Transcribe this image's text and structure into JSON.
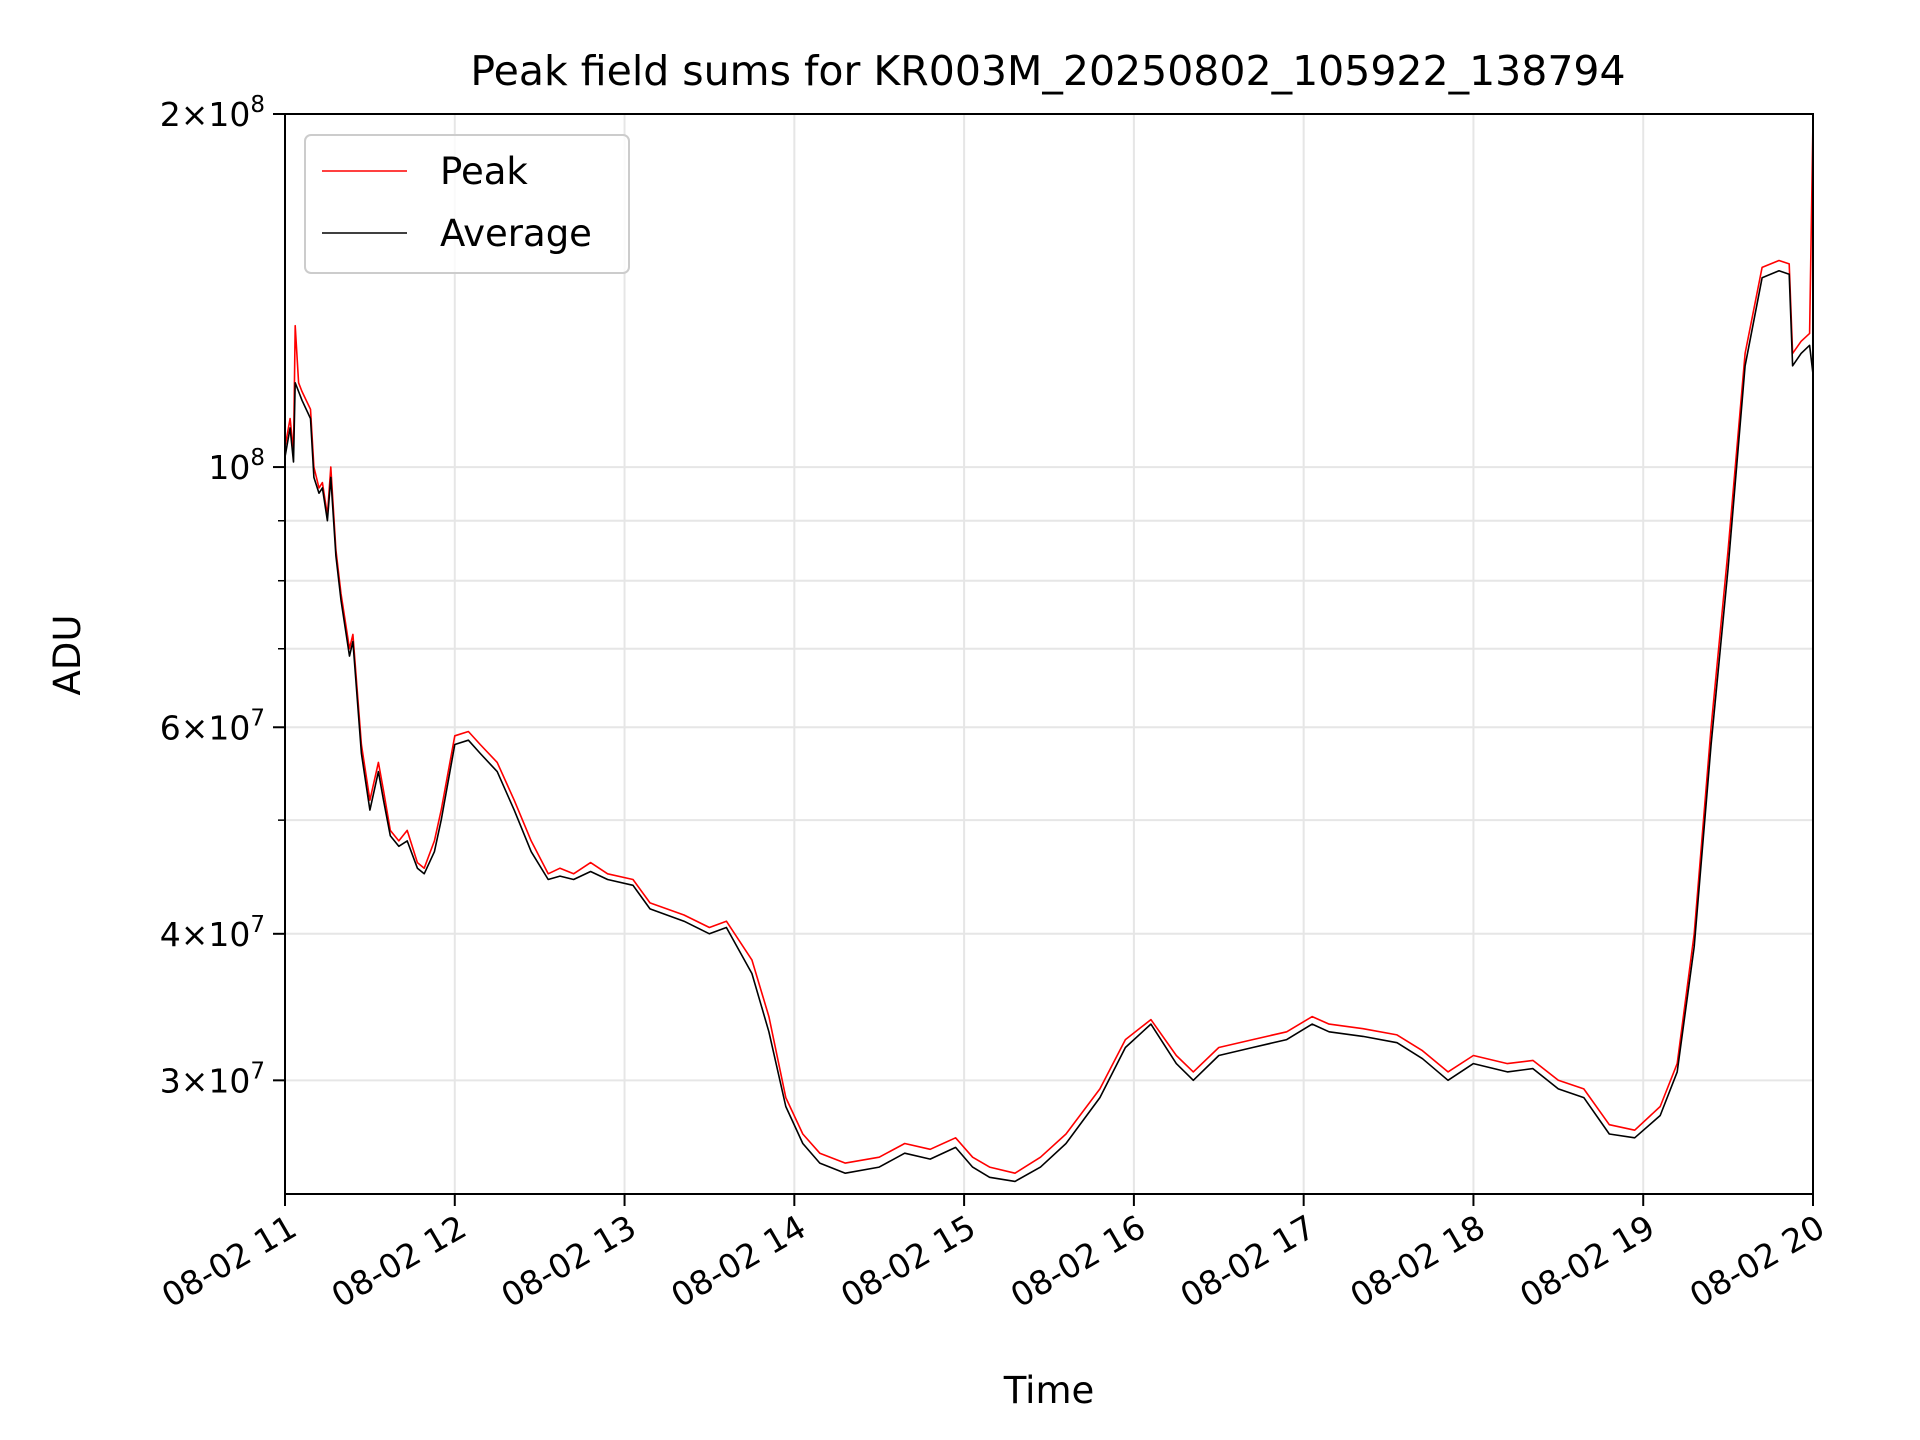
{
  "chart_data": {
    "type": "line",
    "title": "Peak field sums for KR003M_20250802_105922_138794",
    "xlabel": "Time",
    "ylabel": "ADU",
    "x_unit": "hours",
    "xlim": [
      "08-02 11",
      "08-02 20"
    ],
    "ylim": [
      24000000,
      200000000
    ],
    "yscale": "log",
    "grid": true,
    "legend_position": "upper-left",
    "x_ticks": [
      "08-02 11",
      "08-02 12",
      "08-02 13",
      "08-02 14",
      "08-02 15",
      "08-02 16",
      "08-02 17",
      "08-02 18",
      "08-02 19",
      "08-02 20"
    ],
    "y_ticks": [
      {
        "value": 30000000,
        "mantissa": "3",
        "base": "10",
        "exp": "7"
      },
      {
        "value": 40000000,
        "mantissa": "4",
        "base": "10",
        "exp": "7"
      },
      {
        "value": 60000000,
        "mantissa": "6",
        "base": "10",
        "exp": "7"
      },
      {
        "value": 100000000,
        "mantissa": "",
        "base": "10",
        "exp": "8"
      },
      {
        "value": 200000000,
        "mantissa": "2",
        "base": "10",
        "exp": "8"
      }
    ],
    "y_minor_ticks": [
      50000000,
      70000000,
      80000000,
      90000000
    ],
    "series": [
      {
        "name": "Peak",
        "color": "#ff0000",
        "x": [
          11.0,
          11.03,
          11.05,
          11.06,
          11.08,
          11.1,
          11.15,
          11.17,
          11.2,
          11.22,
          11.25,
          11.27,
          11.3,
          11.33,
          11.38,
          11.4,
          11.45,
          11.5,
          11.55,
          11.58,
          11.62,
          11.67,
          11.72,
          11.78,
          11.82,
          11.88,
          11.92,
          12.0,
          12.08,
          12.15,
          12.25,
          12.35,
          12.45,
          12.55,
          12.62,
          12.7,
          12.8,
          12.9,
          13.05,
          13.15,
          13.35,
          13.5,
          13.6,
          13.75,
          13.85,
          13.95,
          14.05,
          14.15,
          14.3,
          14.5,
          14.65,
          14.8,
          14.95,
          15.05,
          15.15,
          15.3,
          15.45,
          15.6,
          15.8,
          15.95,
          16.1,
          16.25,
          16.35,
          16.5,
          16.7,
          16.9,
          17.05,
          17.15,
          17.35,
          17.55,
          17.7,
          17.85,
          18.0,
          18.2,
          18.35,
          18.5,
          18.65,
          18.8,
          18.95,
          19.1,
          19.2,
          19.3,
          19.4,
          19.5,
          19.6,
          19.7,
          19.8,
          19.86,
          19.88,
          19.93,
          19.98,
          20.0
        ],
        "values": [
          104000000,
          110000000,
          103000000,
          132000000,
          118000000,
          116000000,
          112000000,
          100000000,
          96000000,
          97000000,
          91000000,
          100000000,
          85000000,
          78000000,
          70000000,
          72000000,
          58000000,
          52000000,
          56000000,
          53000000,
          49000000,
          48000000,
          49000000,
          46000000,
          45500000,
          48000000,
          51000000,
          59000000,
          59500000,
          58000000,
          56000000,
          52000000,
          48000000,
          45000000,
          45500000,
          45000000,
          46000000,
          45000000,
          44500000,
          42500000,
          41500000,
          40500000,
          41000000,
          38000000,
          34000000,
          29000000,
          27000000,
          26000000,
          25500000,
          25800000,
          26500000,
          26200000,
          26800000,
          25800000,
          25300000,
          25000000,
          25800000,
          27000000,
          29500000,
          32500000,
          33800000,
          31500000,
          30500000,
          32000000,
          32500000,
          33000000,
          34000000,
          33500000,
          33200000,
          32800000,
          31800000,
          30500000,
          31500000,
          31000000,
          31200000,
          30000000,
          29500000,
          27500000,
          27200000,
          28500000,
          31000000,
          40000000,
          60000000,
          85000000,
          125000000,
          148000000,
          150000000,
          149000000,
          125000000,
          128000000,
          130000000,
          198000000
        ]
      },
      {
        "name": "Average",
        "color": "#000000",
        "x": [
          11.0,
          11.03,
          11.05,
          11.06,
          11.08,
          11.1,
          11.15,
          11.17,
          11.2,
          11.22,
          11.25,
          11.27,
          11.3,
          11.33,
          11.38,
          11.4,
          11.45,
          11.5,
          11.55,
          11.58,
          11.62,
          11.67,
          11.72,
          11.78,
          11.82,
          11.88,
          11.92,
          12.0,
          12.08,
          12.15,
          12.25,
          12.35,
          12.45,
          12.55,
          12.62,
          12.7,
          12.8,
          12.9,
          13.05,
          13.15,
          13.35,
          13.5,
          13.6,
          13.75,
          13.85,
          13.95,
          14.05,
          14.15,
          14.3,
          14.5,
          14.65,
          14.8,
          14.95,
          15.05,
          15.15,
          15.3,
          15.45,
          15.6,
          15.8,
          15.95,
          16.1,
          16.25,
          16.35,
          16.5,
          16.7,
          16.9,
          17.05,
          17.15,
          17.35,
          17.55,
          17.7,
          17.85,
          18.0,
          18.2,
          18.35,
          18.5,
          18.65,
          18.8,
          18.95,
          19.1,
          19.2,
          19.3,
          19.4,
          19.5,
          19.6,
          19.7,
          19.8,
          19.86,
          19.88,
          19.93,
          19.98,
          20.0
        ],
        "values": [
          102000000,
          108000000,
          101000000,
          118000000,
          116000000,
          114000000,
          110000000,
          98000000,
          95000000,
          96000000,
          90000000,
          98000000,
          84000000,
          77000000,
          69000000,
          71000000,
          57000000,
          51000000,
          55000000,
          52000000,
          48500000,
          47500000,
          48000000,
          45500000,
          45000000,
          47000000,
          50000000,
          58000000,
          58500000,
          57000000,
          55000000,
          51000000,
          47000000,
          44500000,
          44800000,
          44500000,
          45200000,
          44500000,
          44000000,
          42000000,
          41000000,
          40000000,
          40500000,
          37000000,
          33000000,
          28500000,
          26500000,
          25500000,
          25000000,
          25300000,
          26000000,
          25700000,
          26300000,
          25300000,
          24800000,
          24600000,
          25300000,
          26500000,
          29000000,
          32000000,
          33500000,
          31000000,
          30000000,
          31500000,
          32000000,
          32500000,
          33500000,
          33000000,
          32700000,
          32300000,
          31300000,
          30000000,
          31000000,
          30500000,
          30700000,
          29500000,
          29000000,
          27000000,
          26800000,
          28000000,
          30500000,
          39000000,
          58000000,
          82000000,
          122000000,
          145000000,
          147000000,
          146000000,
          122000000,
          125000000,
          127000000,
          120000000
        ]
      }
    ]
  }
}
